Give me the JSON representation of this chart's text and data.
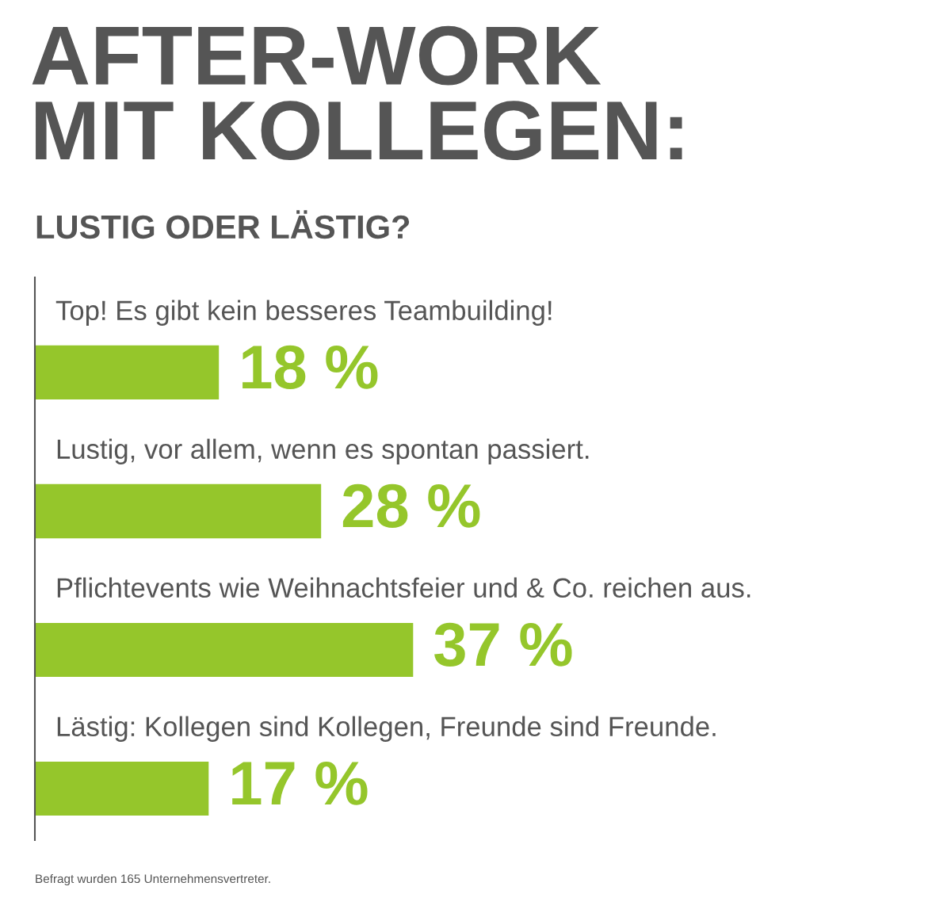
{
  "chart_data": {
    "type": "bar",
    "orientation": "horizontal",
    "title": "AFTER-WORK\nMIT KOLLEGEN:",
    "subtitle": "LUSTIG ODER LÄSTIG?",
    "categories": [
      "Top! Es gibt kein besseres Teambuilding!",
      "Lustig, vor allem, wenn es spontan passiert.",
      "Pflichtevents wie Weihnachtsfeier und & Co. reichen aus.",
      "Lästig: Kollegen sind Kollegen, Freunde sind Freunde."
    ],
    "values": [
      18,
      28,
      37,
      17
    ],
    "value_labels": [
      "18 %",
      "28 %",
      "37 %",
      "17 %"
    ],
    "color": "#95c62b",
    "annotations": [
      "Befragt wurden 165 Unternehmensvertreter."
    ]
  }
}
